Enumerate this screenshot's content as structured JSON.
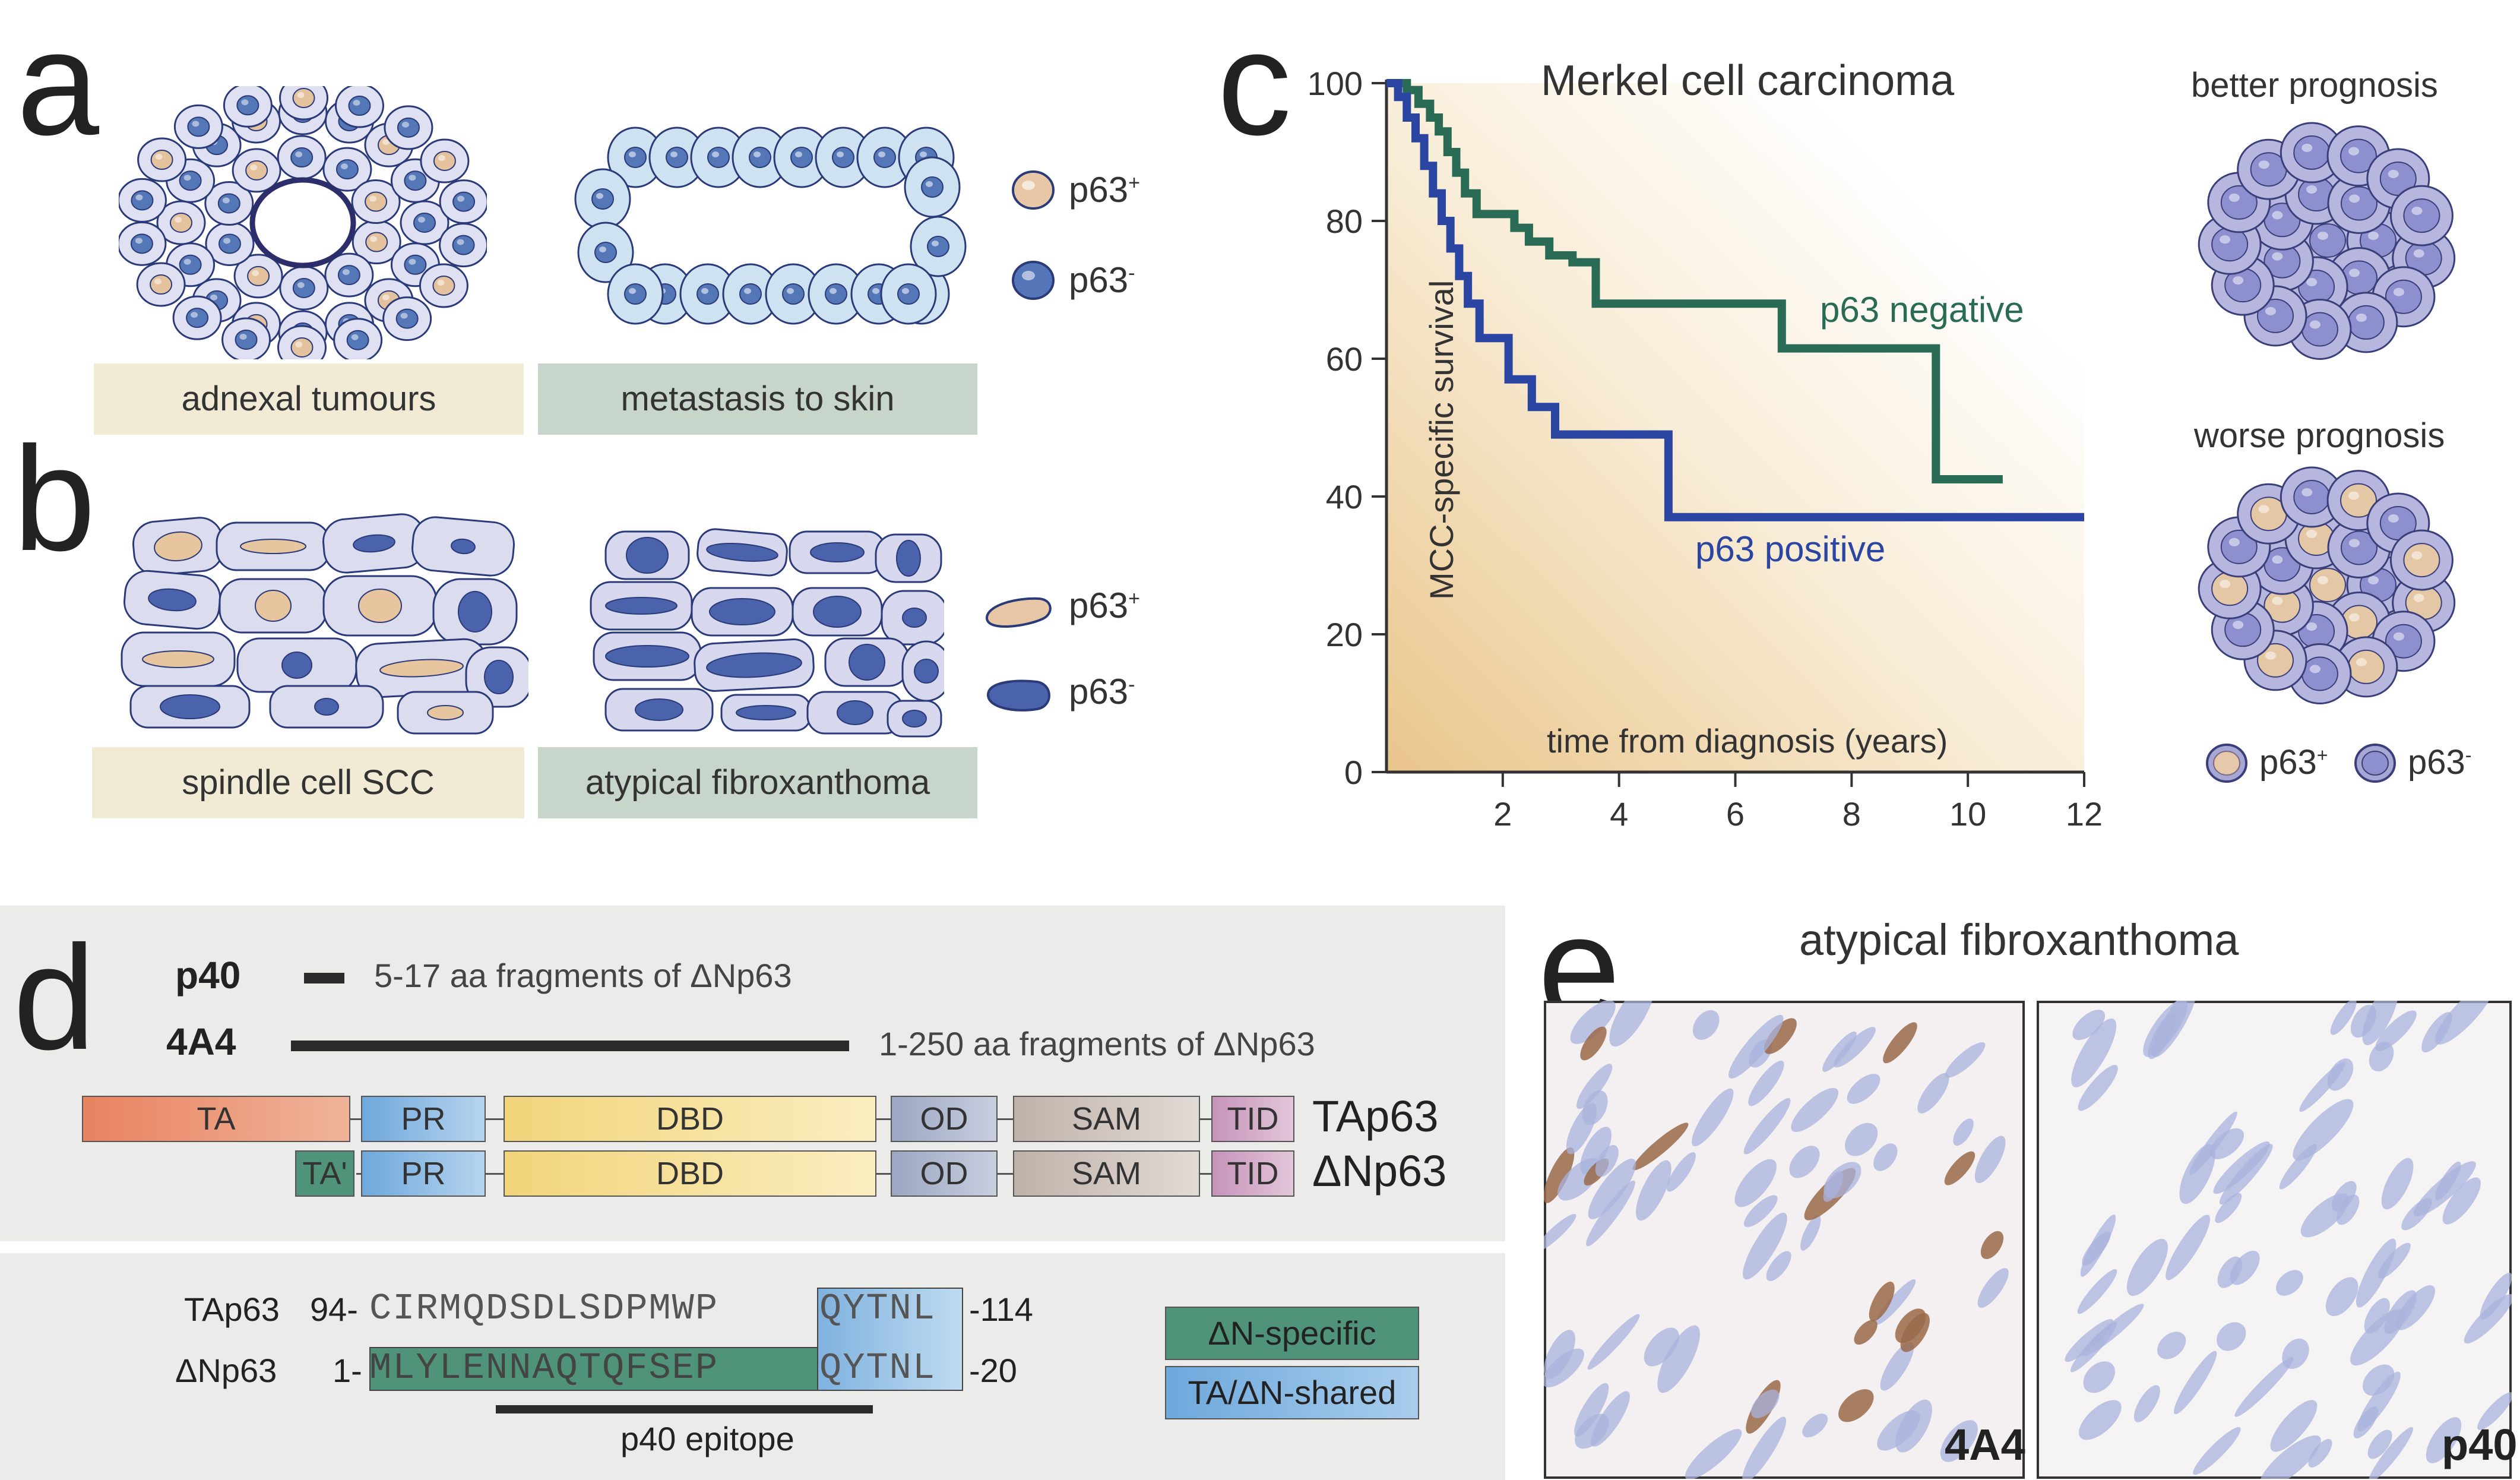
{
  "panel_letters": {
    "a": "a",
    "b": "b",
    "c": "c",
    "d": "d",
    "e": "e"
  },
  "panel_a": {
    "label_left": "adnexal tumours",
    "label_right": "metastasis to skin",
    "legend_pos": "p63",
    "legend_pos_sup": "+",
    "legend_neg": "p63",
    "legend_neg_sup": "-"
  },
  "panel_b": {
    "label_left": "spindle cell SCC",
    "label_right": "atypical fibroxanthoma",
    "legend_pos": "p63",
    "legend_pos_sup": "+",
    "legend_neg": "p63",
    "legend_neg_sup": "-"
  },
  "panel_c": {
    "title": "Merkel cell carcinoma",
    "xlabel": "time from diagnosis (years)",
    "ylabel": "MCC-specific survival",
    "better": "better prognosis",
    "worse": "worse prognosis",
    "legend_pos": "p63",
    "legend_pos_sup": "+",
    "legend_neg": "p63",
    "legend_neg_sup": "-",
    "colors": {
      "negative": "#2a6b56",
      "positive": "#2b45a3"
    }
  },
  "chart_data": {
    "type": "line",
    "title": "Merkel cell carcinoma",
    "xlabel": "time from diagnosis (years)",
    "ylabel": "MCC-specific survival",
    "xlim": [
      0,
      12
    ],
    "ylim": [
      0,
      100
    ],
    "xticks": [
      "2",
      "4",
      "6",
      "8",
      "10",
      "12"
    ],
    "yticks": [
      "0",
      "20",
      "40",
      "60",
      "80",
      "100"
    ],
    "series": [
      {
        "name": "p63 negative",
        "step_points": [
          [
            0,
            100
          ],
          [
            0.35,
            100
          ],
          [
            0.35,
            99
          ],
          [
            0.55,
            99
          ],
          [
            0.55,
            97
          ],
          [
            0.75,
            97
          ],
          [
            0.75,
            95
          ],
          [
            0.9,
            95
          ],
          [
            0.9,
            93
          ],
          [
            1.05,
            93
          ],
          [
            1.05,
            90
          ],
          [
            1.2,
            90
          ],
          [
            1.2,
            87
          ],
          [
            1.35,
            87
          ],
          [
            1.35,
            84
          ],
          [
            1.55,
            84
          ],
          [
            1.55,
            81
          ],
          [
            2.2,
            81
          ],
          [
            2.2,
            79
          ],
          [
            2.45,
            79
          ],
          [
            2.45,
            77
          ],
          [
            2.8,
            77
          ],
          [
            2.8,
            75
          ],
          [
            3.2,
            75
          ],
          [
            3.2,
            74
          ],
          [
            3.6,
            74
          ],
          [
            3.6,
            68
          ],
          [
            6.8,
            68
          ],
          [
            6.8,
            61.5
          ],
          [
            9.45,
            61.5
          ],
          [
            9.45,
            42.5
          ],
          [
            10.6,
            42.5
          ]
        ]
      },
      {
        "name": "p63 positive",
        "step_points": [
          [
            0,
            100
          ],
          [
            0.2,
            100
          ],
          [
            0.2,
            98
          ],
          [
            0.35,
            98
          ],
          [
            0.35,
            95
          ],
          [
            0.5,
            95
          ],
          [
            0.5,
            92
          ],
          [
            0.65,
            92
          ],
          [
            0.65,
            88
          ],
          [
            0.8,
            88
          ],
          [
            0.8,
            84
          ],
          [
            0.95,
            84
          ],
          [
            0.95,
            80
          ],
          [
            1.1,
            80
          ],
          [
            1.1,
            76
          ],
          [
            1.25,
            76
          ],
          [
            1.25,
            72
          ],
          [
            1.4,
            72
          ],
          [
            1.4,
            68
          ],
          [
            1.6,
            68
          ],
          [
            1.6,
            63
          ],
          [
            2.1,
            63
          ],
          [
            2.1,
            57
          ],
          [
            2.5,
            57
          ],
          [
            2.5,
            53
          ],
          [
            2.9,
            53
          ],
          [
            2.9,
            49
          ],
          [
            4.85,
            49
          ],
          [
            4.85,
            37
          ],
          [
            12,
            37
          ]
        ]
      }
    ]
  },
  "panel_d": {
    "p40_label": "p40",
    "p40_desc": "5-17 aa fragments of ΔNp63",
    "a4_label": "4A4",
    "a4_desc": "1-250 aa fragments of ΔNp63",
    "domains": {
      "ta": "TA",
      "ta_prime": "TA'",
      "pr": "PR",
      "dbd": "DBD",
      "od": "OD",
      "sam": "SAM",
      "tid": "TID"
    },
    "isoform_ta": "TAp63",
    "isoform_dn": "ΔNp63",
    "colors": {
      "ta": "#e57a5c",
      "ta_prime": "#4f9478",
      "pr": "#7fb3df",
      "dbd": "#f3d98a",
      "od": "#a4aec8",
      "sam": "#c9bdb6",
      "tid": "#cfa2c2"
    }
  },
  "panel_d2": {
    "row1_name": "TAp63",
    "row1_start": "94-",
    "row1_seq_a": "CIRMQDSDLSDPMWP",
    "row1_seq_b": "QYTNL",
    "row1_end": "-114",
    "row2_name": "ΔNp63",
    "row2_start": "1-",
    "row2_seq_a": "MLYLENNAQTQFSEP",
    "row2_seq_b": "QYTNL",
    "row2_end": "-20",
    "epitope": "p40 epitope",
    "key_dn": "ΔN-specific",
    "key_shared": "TA/ΔN-shared"
  },
  "panel_e": {
    "title": "atypical fibroxanthoma",
    "left_label": "4A4",
    "right_label": "p40"
  }
}
